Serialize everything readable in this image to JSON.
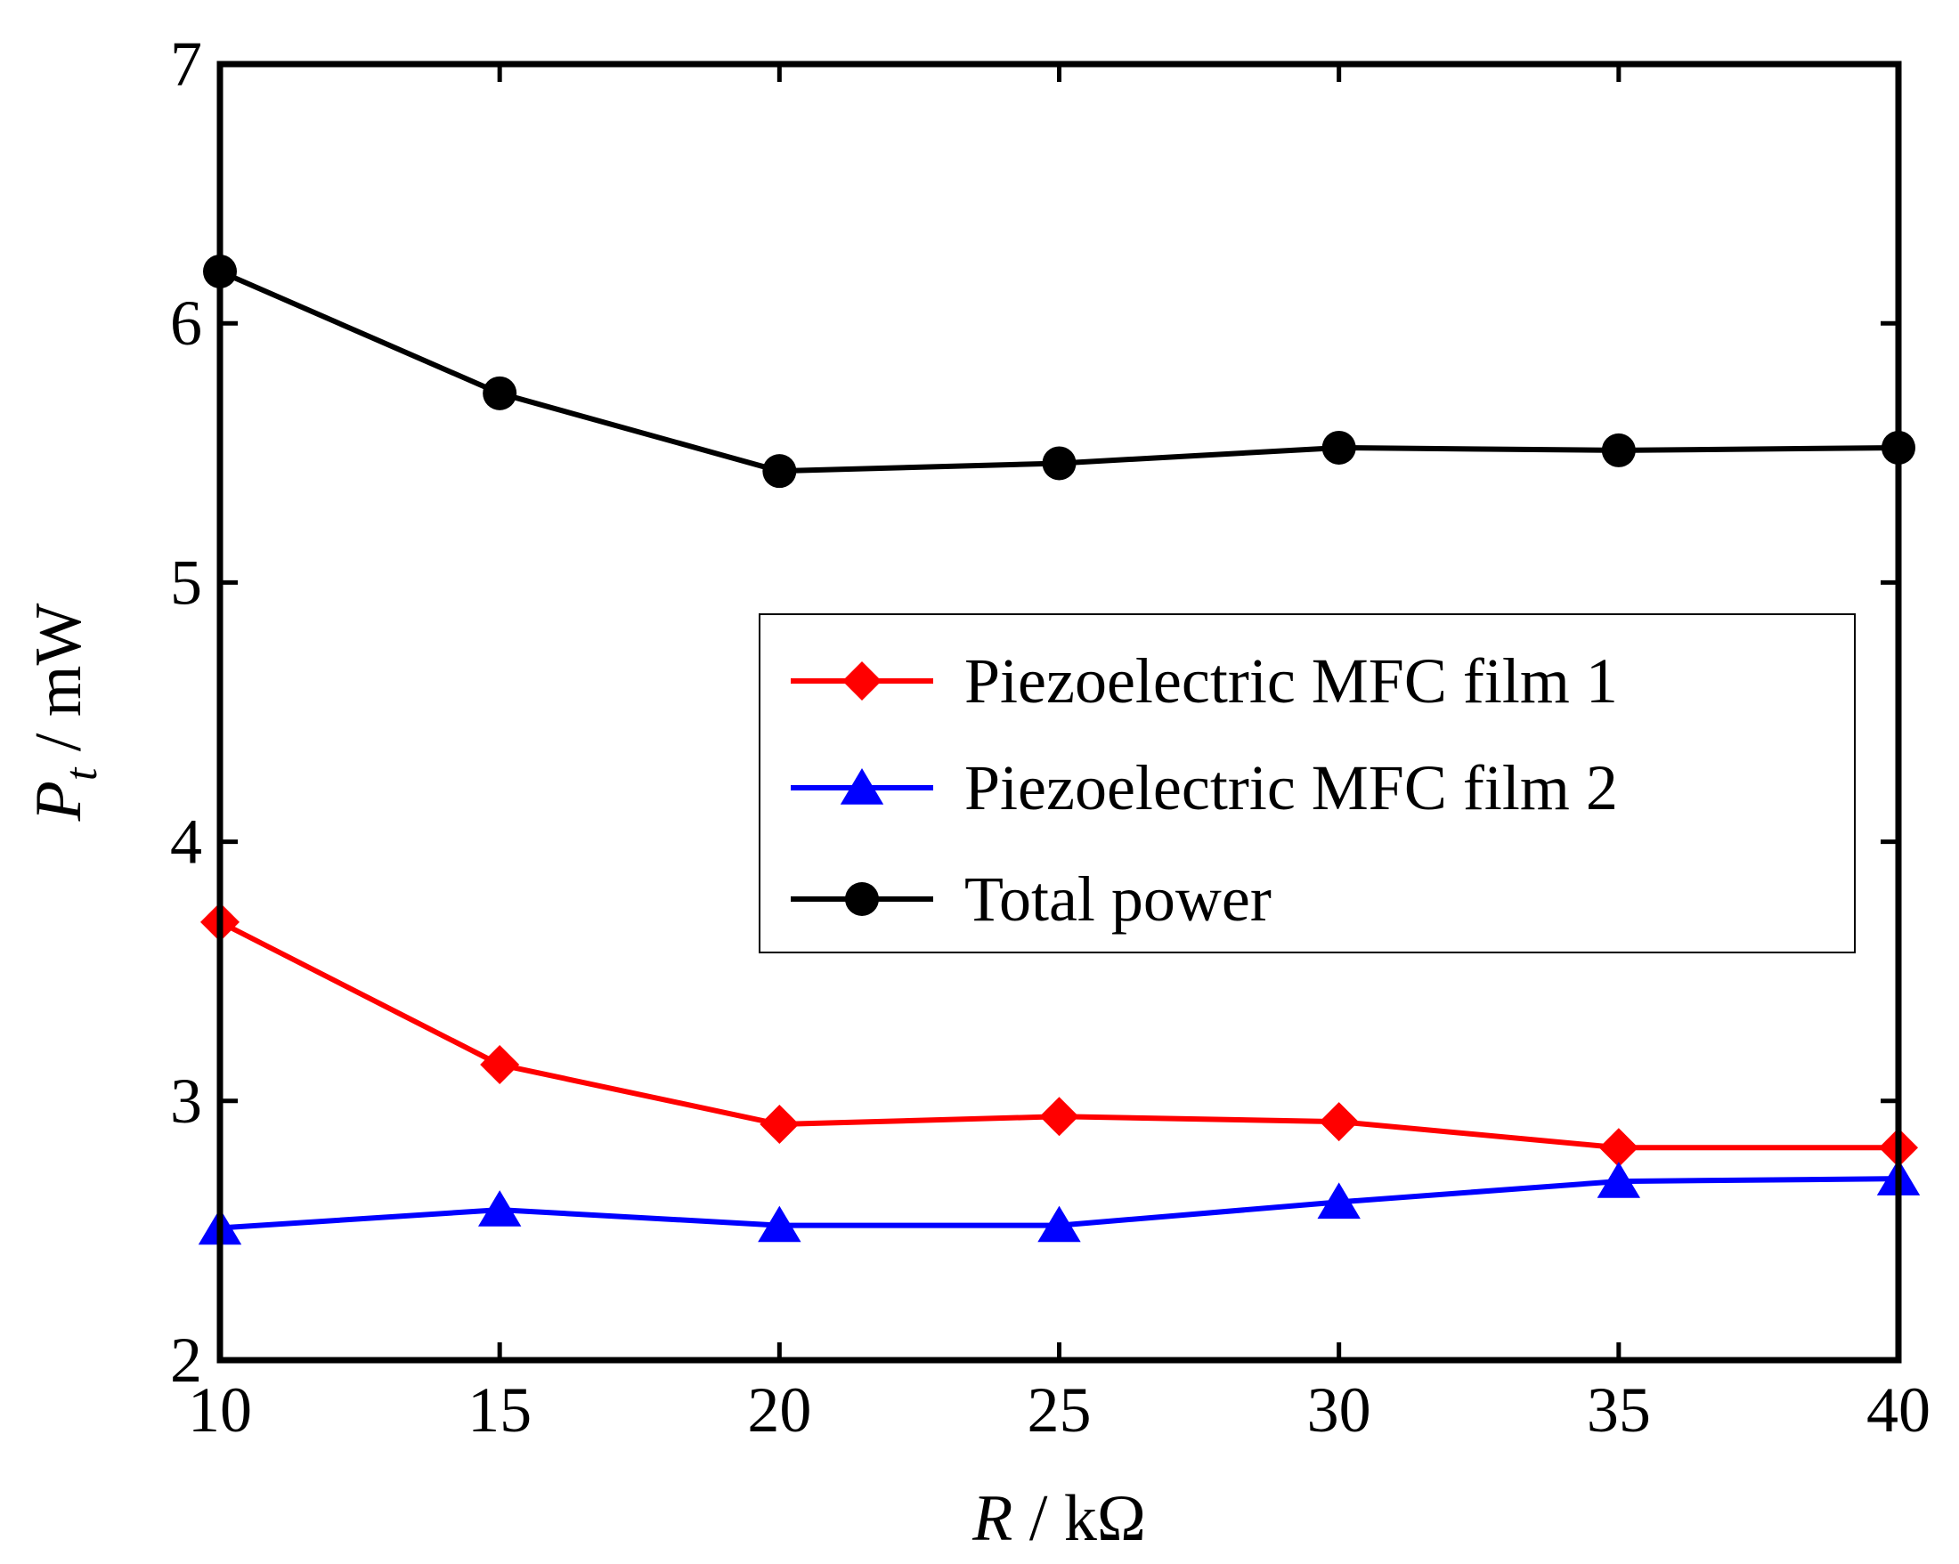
{
  "chart_data": {
    "type": "line",
    "title": "",
    "x": [
      10,
      15,
      20,
      25,
      30,
      35,
      40
    ],
    "xlim": [
      10,
      40
    ],
    "ylim": [
      2,
      7
    ],
    "xticks": [
      "10",
      "15",
      "20",
      "25",
      "30",
      "35",
      "40"
    ],
    "yticks": [
      "2",
      "3",
      "4",
      "5",
      "6",
      "7"
    ],
    "xlabel": {
      "var": "R",
      "unit": " / kΩ"
    },
    "ylabel": {
      "var": "P",
      "sub": "t",
      "unit": " / mW"
    },
    "grid": false,
    "legend_position": "center-right",
    "series": [
      {
        "name": "Piezoelectric MFC film 1",
        "color": "#ff0000",
        "marker": "diamond",
        "values": [
          3.69,
          3.14,
          2.91,
          2.94,
          2.92,
          2.82,
          2.82
        ]
      },
      {
        "name": "Piezoelectric MFC film 2",
        "color": "#0000ff",
        "marker": "triangle",
        "values": [
          2.51,
          2.58,
          2.52,
          2.52,
          2.61,
          2.69,
          2.7
        ]
      },
      {
        "name": "Total power",
        "color": "#000000",
        "marker": "circle",
        "values": [
          6.2,
          5.73,
          5.43,
          5.46,
          5.52,
          5.51,
          5.52
        ]
      }
    ]
  }
}
